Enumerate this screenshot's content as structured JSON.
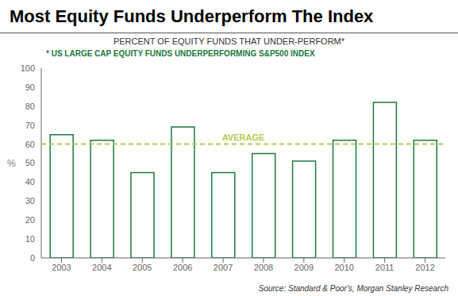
{
  "chart_data": {
    "type": "bar",
    "title": "Most Equity Funds Underperform The Index",
    "subtitle": "PERCENT OF EQUITY FUNDS THAT UNDER-PERFORM*",
    "footnote": "* US LARGE CAP EQUITY FUNDS UNDERPERFORMING S&P500 INDEX",
    "source": "Source: Standard & Poor's, Morgan Stanley Research",
    "ylabel": "%",
    "categories": [
      "2003",
      "2004",
      "2005",
      "2006",
      "2007",
      "2008",
      "2009",
      "2010",
      "2011",
      "2012"
    ],
    "values": [
      65,
      62,
      45,
      69,
      45,
      55,
      51,
      62,
      82,
      62
    ],
    "color": "#1a7a3c",
    "ylim": [
      0,
      100
    ],
    "yticks": [
      0,
      10,
      20,
      30,
      40,
      50,
      60,
      70,
      80,
      90,
      100
    ],
    "grid": false,
    "average": {
      "value": 60,
      "label": "AVERAGE",
      "color": "#b5c94c",
      "line_style": "dashed"
    }
  }
}
